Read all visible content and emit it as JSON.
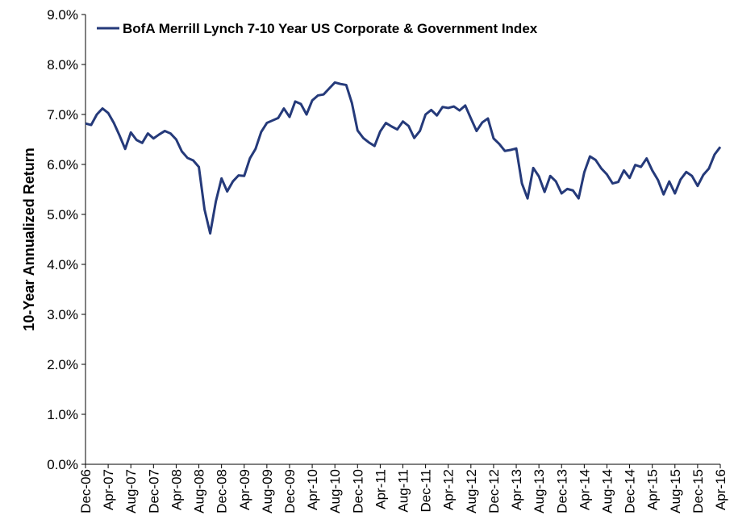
{
  "chart_data": {
    "type": "line",
    "y_label": "10-Year Annualized  Return",
    "categories": [
      "Dec-06",
      null,
      null,
      null,
      "Apr-07",
      null,
      null,
      null,
      "Aug-07",
      null,
      null,
      null,
      "Dec-07",
      null,
      null,
      null,
      "Apr-08",
      null,
      null,
      null,
      "Aug-08",
      null,
      null,
      null,
      "Dec-08",
      null,
      null,
      null,
      "Apr-09",
      null,
      null,
      null,
      "Aug-09",
      null,
      null,
      null,
      "Dec-09",
      null,
      null,
      null,
      "Apr-10",
      null,
      null,
      null,
      "Aug-10",
      null,
      null,
      null,
      "Dec-10",
      null,
      null,
      null,
      "Apr-11",
      null,
      null,
      null,
      "Aug-11",
      null,
      null,
      null,
      "Dec-11",
      null,
      null,
      null,
      "Apr-12",
      null,
      null,
      null,
      "Aug-12",
      null,
      null,
      null,
      "Dec-12",
      null,
      null,
      null,
      "Apr-13",
      null,
      null,
      null,
      "Aug-13",
      null,
      null,
      null,
      "Dec-13",
      null,
      null,
      null,
      "Apr-14",
      null,
      null,
      null,
      "Aug-14",
      null,
      null,
      null,
      "Dec-14",
      null,
      null,
      null,
      "Apr-15",
      null,
      null,
      null,
      "Aug-15",
      null,
      null,
      null,
      "Dec-15",
      null,
      null,
      null,
      "Apr-16"
    ],
    "series": [
      {
        "name": "BofA Merrill Lynch 7-10 Year US Corporate & Government Index",
        "color": "#253a7a",
        "values": [
          6.82,
          6.79,
          7.0,
          7.12,
          7.03,
          6.83,
          6.58,
          6.31,
          6.64,
          6.49,
          6.43,
          6.62,
          6.52,
          6.6,
          6.67,
          6.62,
          6.5,
          6.26,
          6.13,
          6.08,
          5.95,
          5.1,
          4.62,
          5.26,
          5.72,
          5.46,
          5.66,
          5.78,
          5.77,
          6.12,
          6.31,
          6.65,
          6.83,
          6.88,
          6.93,
          7.12,
          6.95,
          7.26,
          7.21,
          7.0,
          7.28,
          7.38,
          7.4,
          7.52,
          7.64,
          7.61,
          7.59,
          7.23,
          6.68,
          6.53,
          6.44,
          6.37,
          6.66,
          6.83,
          6.76,
          6.7,
          6.86,
          6.77,
          6.53,
          6.67,
          7.0,
          7.09,
          6.98,
          7.15,
          7.13,
          7.16,
          7.08,
          7.18,
          6.92,
          6.67,
          6.84,
          6.92,
          6.52,
          6.41,
          6.27,
          6.29,
          6.32,
          5.62,
          5.32,
          5.93,
          5.76,
          5.45,
          5.77,
          5.66,
          5.42,
          5.51,
          5.48,
          5.32,
          5.84,
          6.16,
          6.09,
          5.92,
          5.8,
          5.62,
          5.65,
          5.88,
          5.73,
          5.99,
          5.95,
          6.12,
          5.88,
          5.69,
          5.4,
          5.66,
          5.42,
          5.7,
          5.85,
          5.77,
          5.57,
          5.79,
          5.92,
          6.2,
          6.35
        ]
      }
    ],
    "ylim": [
      0,
      9
    ],
    "yticks": [
      {
        "value": 0,
        "label": "0.0%"
      },
      {
        "value": 1,
        "label": "1.0%"
      },
      {
        "value": 2,
        "label": "2.0%"
      },
      {
        "value": 3,
        "label": "3.0%"
      },
      {
        "value": 4,
        "label": "4.0%"
      },
      {
        "value": 5,
        "label": "5.0%"
      },
      {
        "value": 6,
        "label": "6.0%"
      },
      {
        "value": 7,
        "label": "7.0%"
      },
      {
        "value": 8,
        "label": "8.0%"
      },
      {
        "value": 9,
        "label": "9.0%"
      }
    ],
    "grid": false,
    "legend": "top-left"
  }
}
